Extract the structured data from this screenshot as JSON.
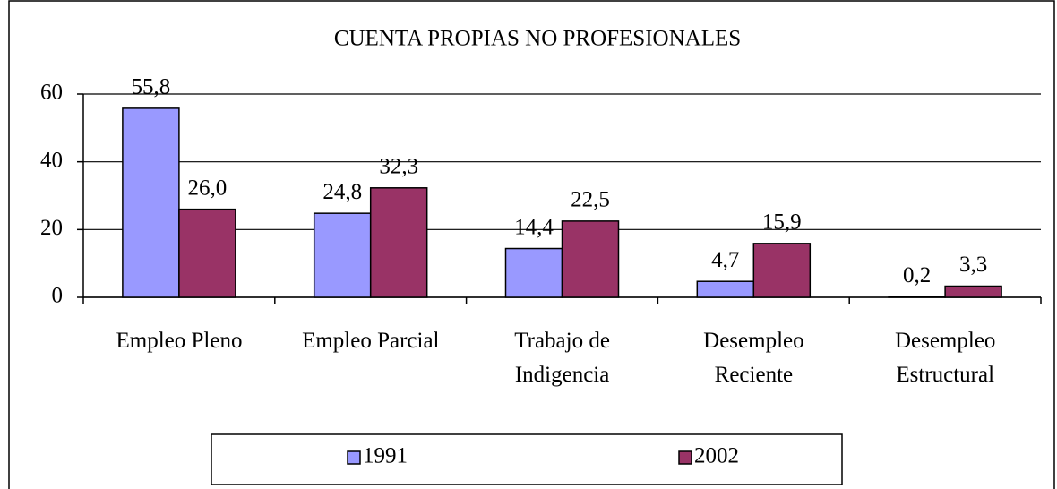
{
  "chart_data": {
    "type": "bar",
    "title": "CUENTA PROPIAS NO PROFESIONALES",
    "categories": [
      "Empleo Pleno",
      "Empleo Parcial",
      "Trabajo de\nIndigencia",
      "Desempleo\nReciente",
      "Desempleo\nEstructural"
    ],
    "series": [
      {
        "name": "1991",
        "color": "#9999ff",
        "values": [
          55.8,
          24.8,
          14.4,
          4.7,
          0.2
        ],
        "value_labels": [
          "55,8",
          "24,8",
          "14,4",
          "4,7",
          "0,2"
        ]
      },
      {
        "name": "2002",
        "color": "#993366",
        "values": [
          26.0,
          32.3,
          22.5,
          15.9,
          3.3
        ],
        "value_labels": [
          "26,0",
          "32,3",
          "22,5",
          "15,9",
          "3,3"
        ]
      }
    ],
    "ylim": [
      0,
      60
    ],
    "yticks": [
      0,
      20,
      40,
      60
    ],
    "grid": true
  }
}
